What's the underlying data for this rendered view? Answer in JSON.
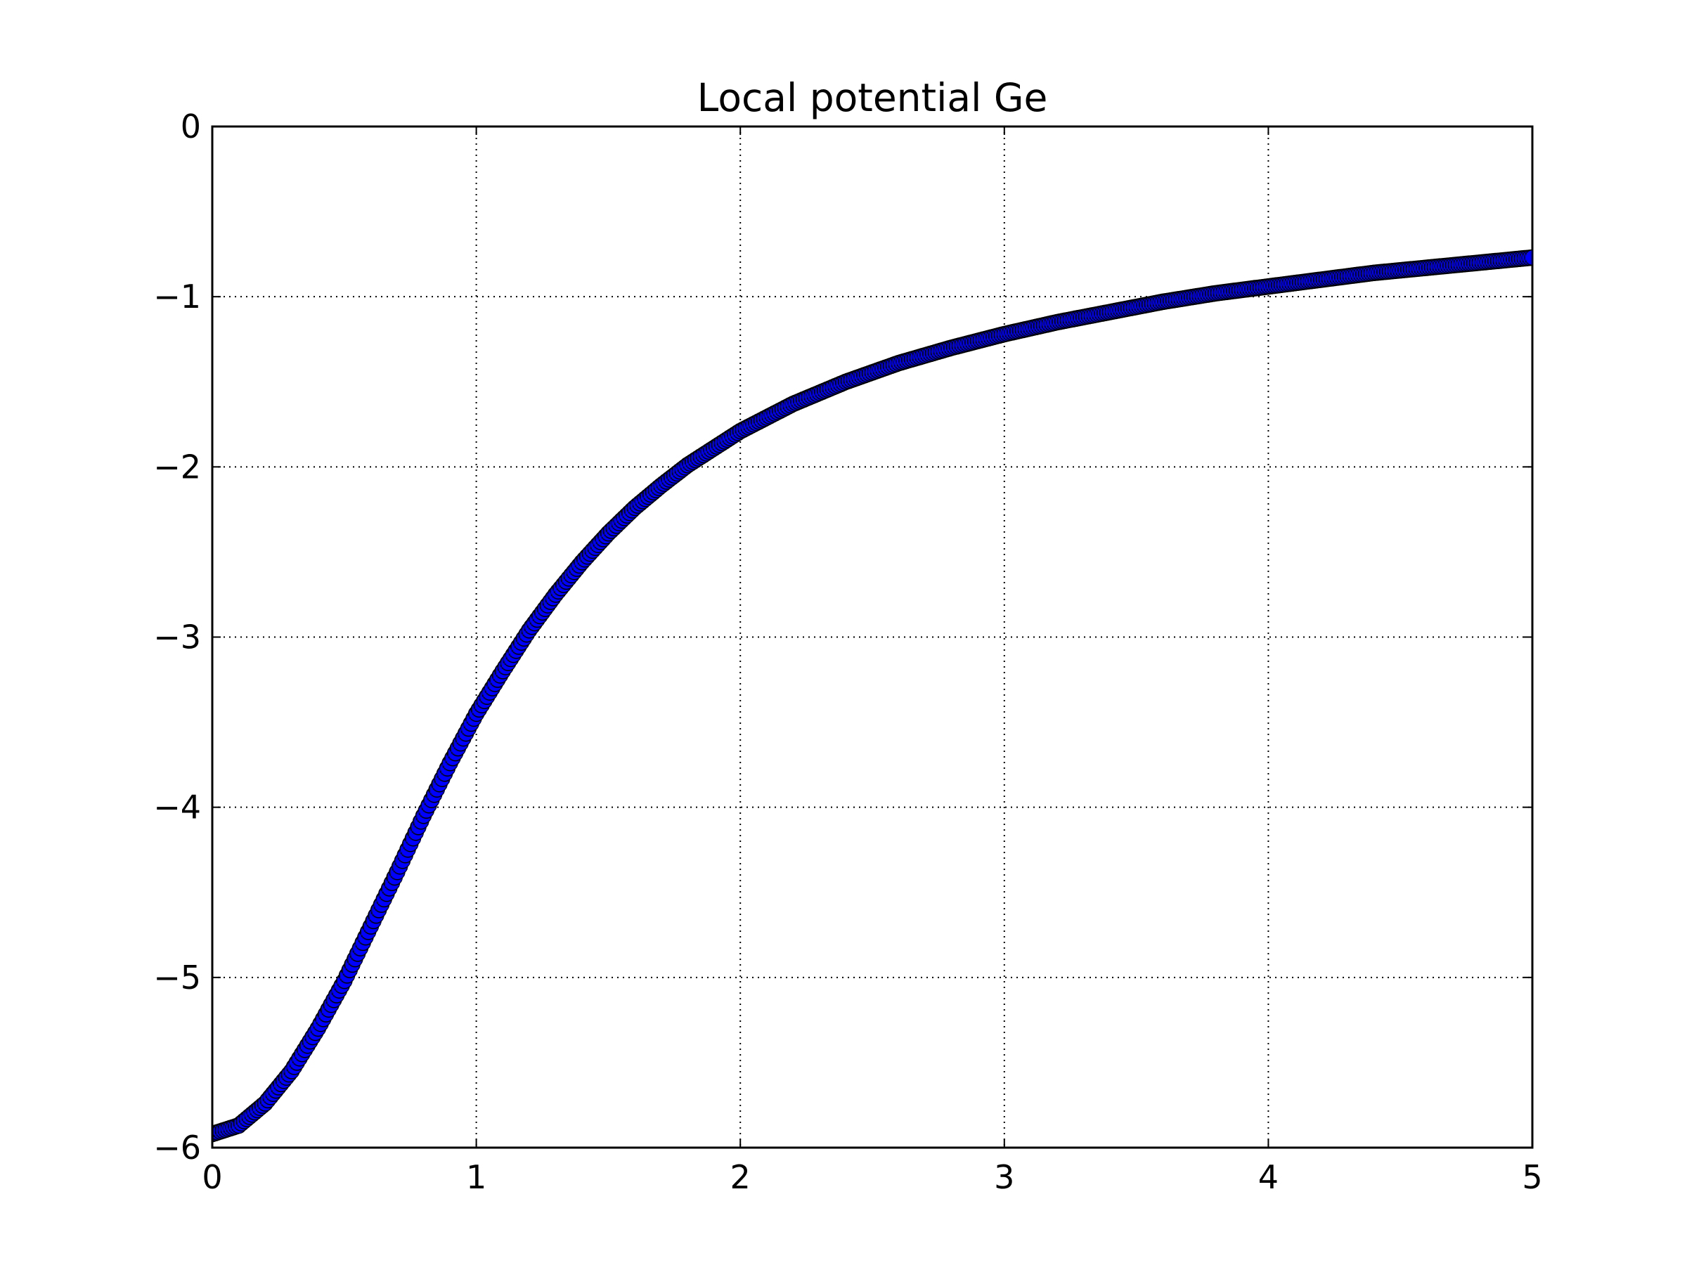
{
  "chart_data": {
    "type": "scatter",
    "title": "Local potential Ge",
    "xlabel": "",
    "ylabel": "",
    "xlim": [
      0,
      5
    ],
    "ylim": [
      -6,
      0
    ],
    "x_ticks": [
      0,
      1,
      2,
      3,
      4,
      5
    ],
    "y_ticks": [
      0,
      -1,
      -2,
      -3,
      -4,
      -5,
      -6
    ],
    "x_tick_labels": [
      "0",
      "1",
      "2",
      "3",
      "4",
      "5"
    ],
    "y_tick_labels": [
      "0",
      "−1",
      "−2",
      "−3",
      "−4",
      "−5",
      "−6"
    ],
    "grid": true,
    "grid_style": "dotted",
    "marker": "circle",
    "marker_face_color": "#0000ff",
    "marker_edge_color": "#000000",
    "series": [
      {
        "x": [
          0,
          0.1,
          0.2,
          0.3,
          0.4,
          0.5,
          0.6,
          0.7,
          0.8,
          0.9,
          1.0,
          1.1,
          1.2,
          1.3,
          1.4,
          1.5,
          1.6,
          1.7,
          1.8,
          1.9,
          2.0,
          2.2,
          2.4,
          2.6,
          2.8,
          3.0,
          3.2,
          3.4,
          3.6,
          3.8,
          4.0,
          4.2,
          4.4,
          4.6,
          4.8,
          5.0
        ],
        "y": [
          -5.92,
          -5.87,
          -5.74,
          -5.55,
          -5.3,
          -5.02,
          -4.7,
          -4.38,
          -4.05,
          -3.74,
          -3.45,
          -3.2,
          -2.96,
          -2.75,
          -2.56,
          -2.39,
          -2.24,
          -2.11,
          -1.99,
          -1.89,
          -1.79,
          -1.63,
          -1.5,
          -1.39,
          -1.3,
          -1.22,
          -1.15,
          -1.09,
          -1.03,
          -0.98,
          -0.94,
          -0.9,
          -0.86,
          -0.83,
          -0.8,
          -0.77
        ]
      }
    ]
  }
}
